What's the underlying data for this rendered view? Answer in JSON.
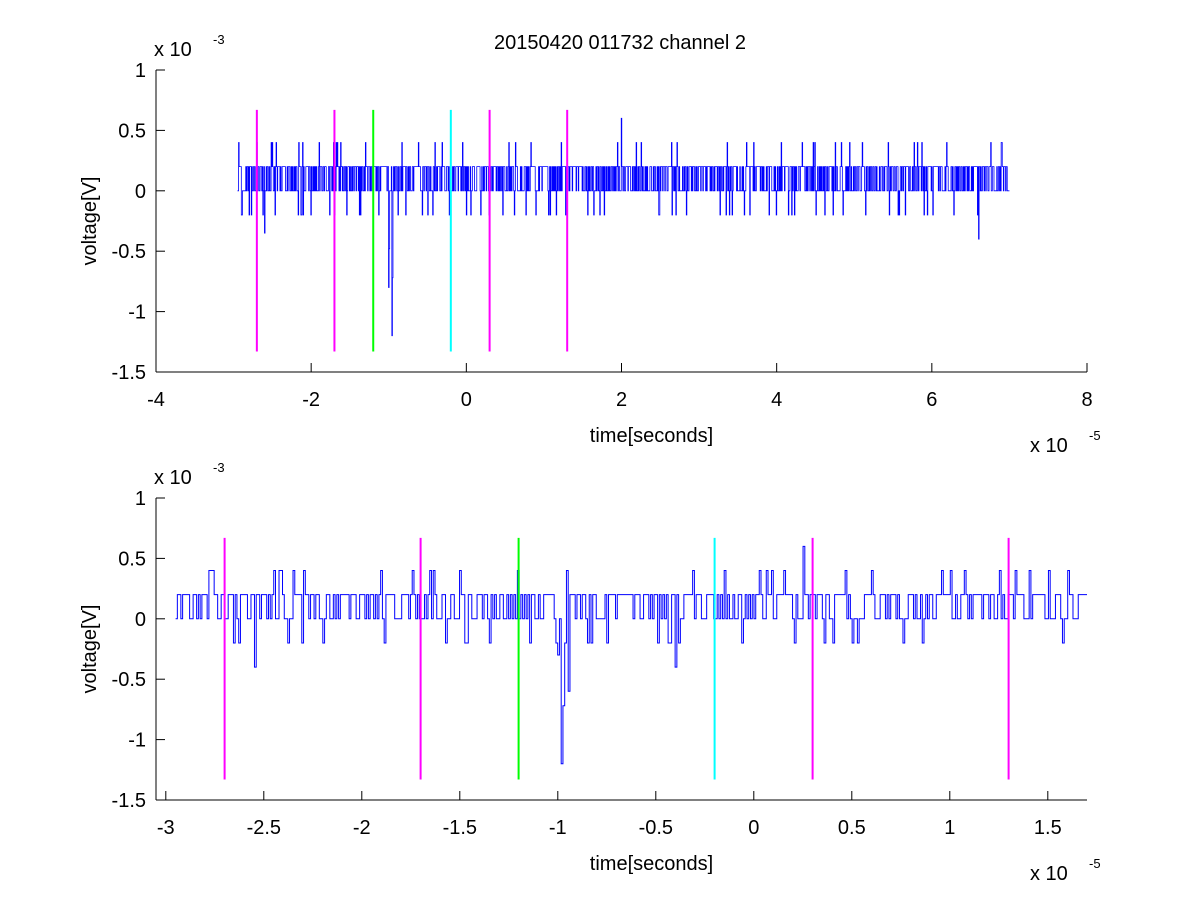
{
  "title": "20150420 011732 channel 2",
  "colors": {
    "signal": "#0000ff",
    "marker_magenta": "#ff00ff",
    "marker_green": "#00ff00",
    "marker_cyan": "#00ffff",
    "axis": "#000000"
  },
  "chart_data": [
    {
      "type": "line",
      "title": "20150420 011732 channel 2",
      "xlabel": "time[seconds]",
      "ylabel": "voltage[V]",
      "x_multiplier": "x 10",
      "x_exponent": "-5",
      "y_multiplier": "x 10",
      "y_exponent": "-3",
      "xlim": [
        -4,
        8
      ],
      "ylim": [
        -1.5,
        1
      ],
      "xticks": [
        -4,
        -2,
        0,
        2,
        4,
        6,
        8
      ],
      "xtick_labels": [
        "-4",
        "-2",
        "0",
        "2",
        "4",
        "6",
        "8"
      ],
      "yticks": [
        -1.5,
        -1,
        -0.5,
        0,
        0.5,
        1
      ],
      "ytick_labels": [
        "-1.5",
        "-1",
        "-0.5",
        "0",
        "0.5",
        "1"
      ],
      "grid": false,
      "signal": {
        "x_start": -2.95,
        "x_end": 7.0,
        "baseline": 0.1,
        "levels": [
          0,
          0.2
        ],
        "spikes": [
          {
            "x": -2.8,
            "y": -0.2
          },
          {
            "x": -2.6,
            "y": -0.35
          },
          {
            "x": -2.5,
            "y": 0.4
          },
          {
            "x": -1.3,
            "y": 0.4
          },
          {
            "x": -1.0,
            "y": -0.8
          },
          {
            "x": -0.96,
            "y": -1.2
          },
          {
            "x": 0.3,
            "y": 0.6
          },
          {
            "x": 2.0,
            "y": 0.6
          },
          {
            "x": 6.6,
            "y": -0.4
          },
          {
            "x": 6.9,
            "y": 0.4
          }
        ]
      },
      "markers": [
        {
          "x": -2.7,
          "y_top": 0.67,
          "y_bottom": -1.33,
          "color": "magenta"
        },
        {
          "x": -1.7,
          "y_top": 0.67,
          "y_bottom": -1.33,
          "color": "magenta"
        },
        {
          "x": -1.2,
          "y_top": 0.67,
          "y_bottom": -1.33,
          "color": "green"
        },
        {
          "x": -0.2,
          "y_top": 0.67,
          "y_bottom": -1.33,
          "color": "cyan"
        },
        {
          "x": 0.3,
          "y_top": 0.67,
          "y_bottom": -1.33,
          "color": "magenta"
        },
        {
          "x": 1.3,
          "y_top": 0.67,
          "y_bottom": -1.33,
          "color": "magenta"
        }
      ]
    },
    {
      "type": "line",
      "title": "",
      "xlabel": "time[seconds]",
      "ylabel": "voltage[V]",
      "x_multiplier": "x 10",
      "x_exponent": "-5",
      "y_multiplier": "x 10",
      "y_exponent": "-3",
      "xlim": [
        -3.05,
        1.7
      ],
      "ylim": [
        -1.5,
        1
      ],
      "xticks": [
        -3,
        -2.5,
        -2,
        -1.5,
        -1,
        -0.5,
        0,
        0.5,
        1,
        1.5
      ],
      "xtick_labels": [
        "-3",
        "-2.5",
        "-2",
        "-1.5",
        "-1",
        "-0.5",
        "0",
        "0.5",
        "1",
        "1.5"
      ],
      "yticks": [
        -1.5,
        -1,
        -0.5,
        0,
        0.5,
        1
      ],
      "ytick_labels": [
        "-1.5",
        "-1",
        "-0.5",
        "0",
        "0.5",
        "1"
      ],
      "grid": false,
      "signal": {
        "x_start": -2.95,
        "x_end": 1.7,
        "baseline": 0.1,
        "levels": [
          0,
          0.2
        ],
        "spikes": [
          {
            "x": -2.78,
            "y": 0.4
          },
          {
            "x": -2.55,
            "y": -0.4
          },
          {
            "x": -2.45,
            "y": 0.4
          },
          {
            "x": -2.3,
            "y": 0.4
          },
          {
            "x": -1.65,
            "y": 0.4
          },
          {
            "x": -1.5,
            "y": 0.4
          },
          {
            "x": -1.0,
            "y": -0.3
          },
          {
            "x": -0.98,
            "y": -1.2
          },
          {
            "x": -0.95,
            "y": -0.6
          },
          {
            "x": -0.4,
            "y": -0.4
          },
          {
            "x": 0.25,
            "y": 0.6
          },
          {
            "x": 0.6,
            "y": 0.4
          },
          {
            "x": 1.25,
            "y": 0.4
          },
          {
            "x": 1.6,
            "y": 0.4
          }
        ]
      },
      "markers": [
        {
          "x": -2.7,
          "y_top": 0.67,
          "y_bottom": -1.33,
          "color": "magenta"
        },
        {
          "x": -1.7,
          "y_top": 0.67,
          "y_bottom": -1.33,
          "color": "magenta"
        },
        {
          "x": -1.2,
          "y_top": 0.67,
          "y_bottom": -1.33,
          "color": "green"
        },
        {
          "x": -0.2,
          "y_top": 0.67,
          "y_bottom": -1.33,
          "color": "cyan"
        },
        {
          "x": 0.3,
          "y_top": 0.67,
          "y_bottom": -1.33,
          "color": "magenta"
        },
        {
          "x": 1.3,
          "y_top": 0.67,
          "y_bottom": -1.33,
          "color": "magenta"
        }
      ]
    }
  ]
}
